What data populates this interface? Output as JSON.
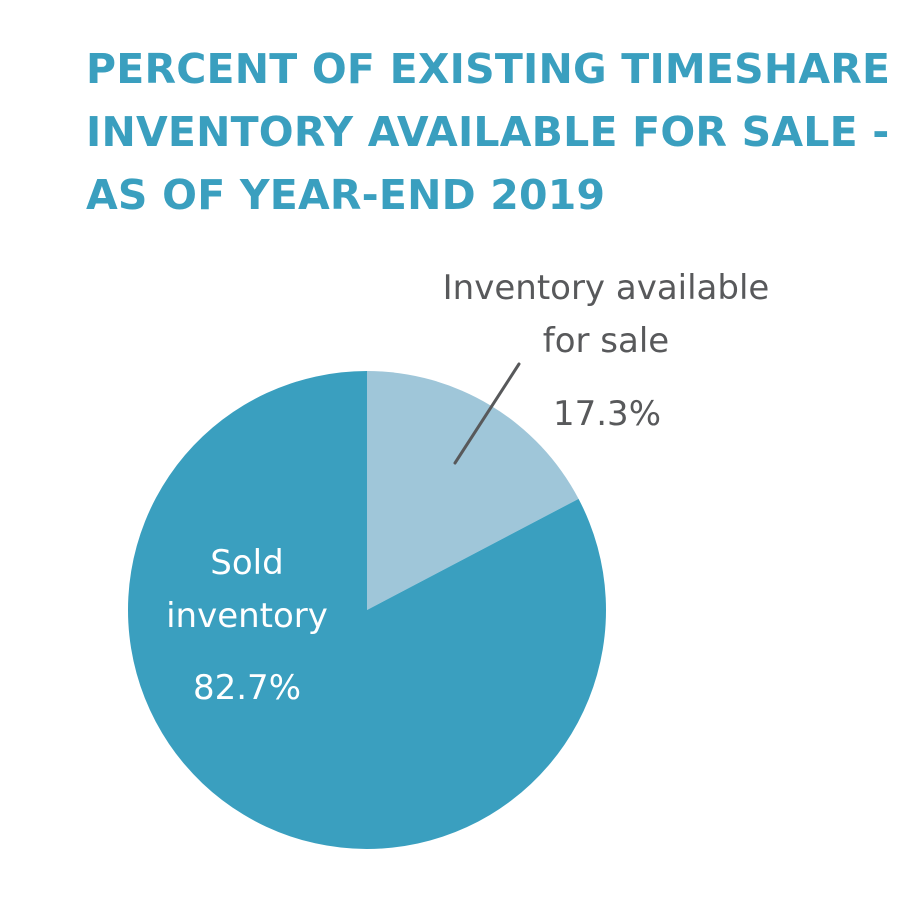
{
  "title_lines": [
    "PERCENT OF EXISTING TIMESHARE",
    "INVENTORY AVAILABLE FOR SALE -",
    "AS OF YEAR-END 2019"
  ],
  "chart_data": {
    "type": "pie",
    "title": "PERCENT OF EXISTING TIMESHARE INVENTORY AVAILABLE FOR SALE - AS OF YEAR-END 2019",
    "slices": [
      {
        "label_lines": [
          "Inventory available",
          "for sale"
        ],
        "value": 17.3,
        "value_label": "17.3%",
        "color": "#9fc6d9",
        "label_position": "outside"
      },
      {
        "label_lines": [
          "Sold",
          "inventory"
        ],
        "value": 82.7,
        "value_label": "82.7%",
        "color": "#3a9fbf",
        "label_position": "inside"
      }
    ],
    "start_angle": "12 o'clock, clockwise",
    "legend": "none"
  },
  "colors": {
    "title": "#3a9fbf",
    "outside_label": "#58595b",
    "inside_label": "#ffffff",
    "leader_line": "#58595b"
  }
}
